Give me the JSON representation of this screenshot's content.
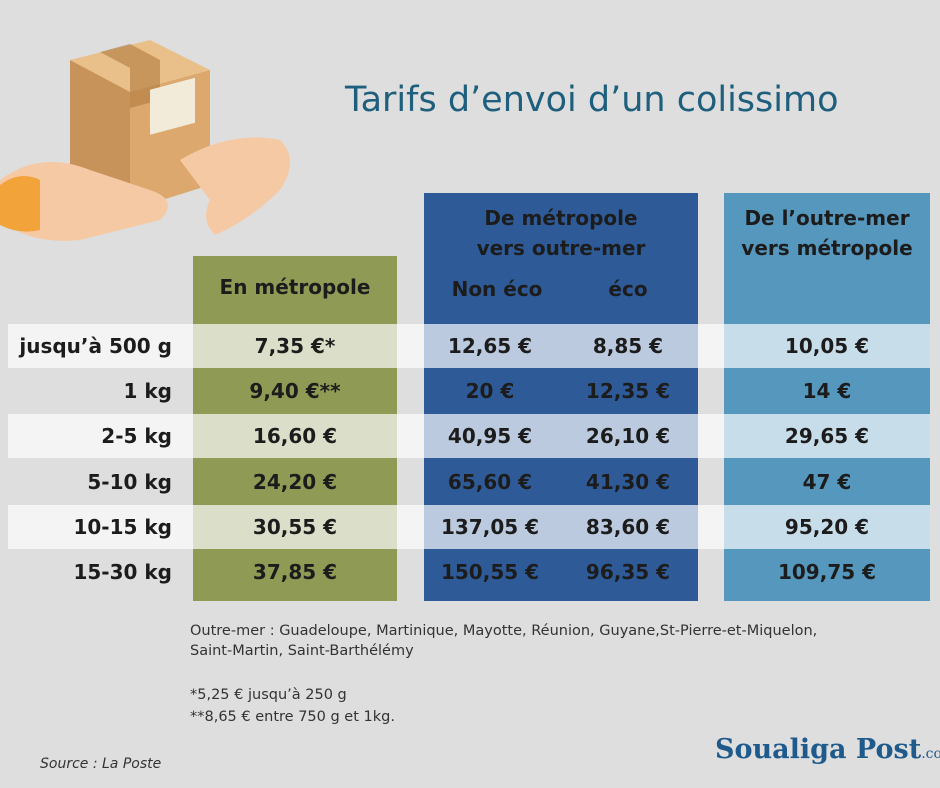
{
  "header": {
    "title": "Tarifs d’envoi d’un colissimo"
  },
  "table": {
    "columns": [
      {
        "lines": [
          "En métropole"
        ]
      },
      {
        "lines": [
          "De métropole",
          "vers outre-mer"
        ],
        "subcolumns": [
          "Non éco",
          "éco"
        ]
      },
      {
        "lines": [
          "De l’outre-mer",
          "vers métropole"
        ]
      }
    ],
    "rows": [
      [
        "jusqu’à 500 g",
        "7,35 €*",
        "12,65 €",
        "8,85 €",
        "10,05 €"
      ],
      [
        "1 kg",
        "9,40 €**",
        "20 €",
        "12,35 €",
        "14 €"
      ],
      [
        "2-5 kg",
        "16,60 €",
        "40,95 €",
        "26,10 €",
        "29,65 €"
      ],
      [
        "5-10 kg",
        "24,20 €",
        "65,60 €",
        "41,30 €",
        "47 €"
      ],
      [
        "10-15 kg",
        "30,55 €",
        "137,05 €",
        "83,60 €",
        "95,20 €"
      ],
      [
        "15-30 kg",
        "37,85 €",
        "150,55 €",
        "96,35 €",
        "109,75 €"
      ]
    ]
  },
  "notes": [
    "Outre-mer : Guadeloupe, Martinique, Mayotte, Réunion, Guyane,St-Pierre-et-Miquelon,",
    "Saint-Martin, Saint-Barthélémy",
    "*5,25 € jusqu’à 250 g",
    "**8,65 € entre 750 g et 1kg."
  ],
  "source": "Source : La Poste",
  "logo": {
    "name": "Soualiga Post",
    "suffix": ".com"
  }
}
